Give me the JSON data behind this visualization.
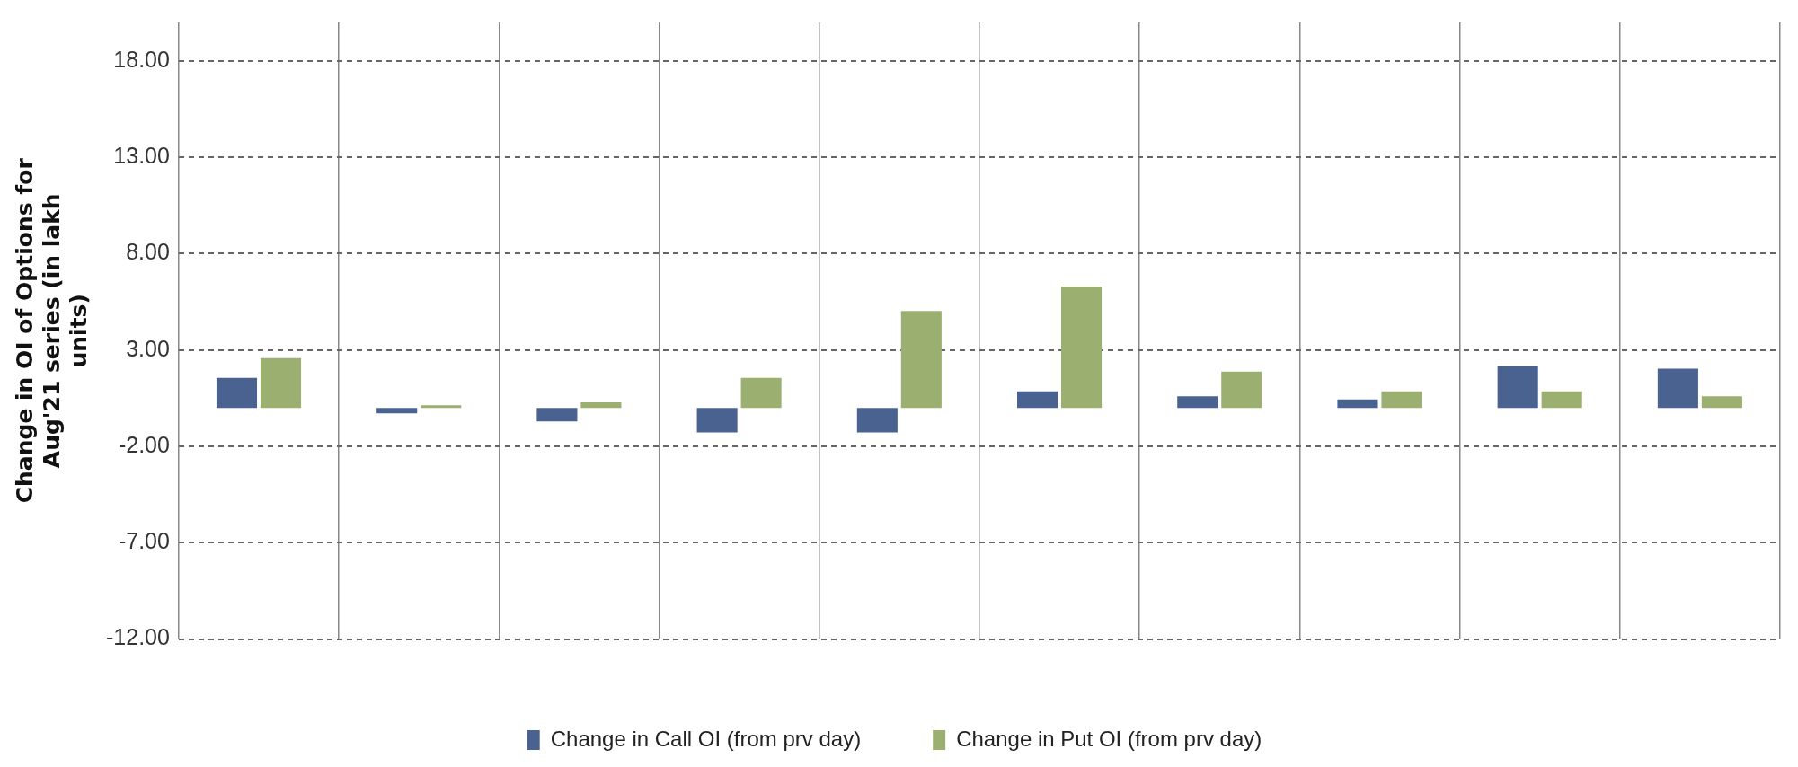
{
  "chart_data": {
    "type": "bar",
    "ylabel": "Change in OI of Options for Aug'21 series (in lakh units)",
    "categories": [
      null,
      null,
      null,
      null,
      null,
      null,
      null,
      null,
      null,
      null
    ],
    "series": [
      {
        "name": "Change in Call OI (from prv day)",
        "color": "#4a6290",
        "values": [
          1.56,
          -0.29,
          -0.7,
          -1.28,
          -1.28,
          0.86,
          0.6,
          0.44,
          2.16,
          2.03
        ]
      },
      {
        "name": "Change in Put OI (from prv day)",
        "color": "#9bb070",
        "values": [
          2.58,
          0.13,
          0.29,
          1.56,
          5.03,
          6.3,
          1.88,
          0.86,
          0.86,
          0.6
        ]
      }
    ],
    "ylim": [
      -12,
      20
    ],
    "yticks": [
      {
        "value": -12,
        "label": "-12.00"
      },
      {
        "value": -7,
        "label": "-7.00"
      },
      {
        "value": -2,
        "label": "-2.00"
      },
      {
        "value": 3,
        "label": "3.00"
      },
      {
        "value": 8,
        "label": "8.00"
      },
      {
        "value": 13,
        "label": "13.00"
      },
      {
        "value": 18,
        "label": "18.00"
      }
    ],
    "grid": true,
    "legend": "bottom"
  }
}
